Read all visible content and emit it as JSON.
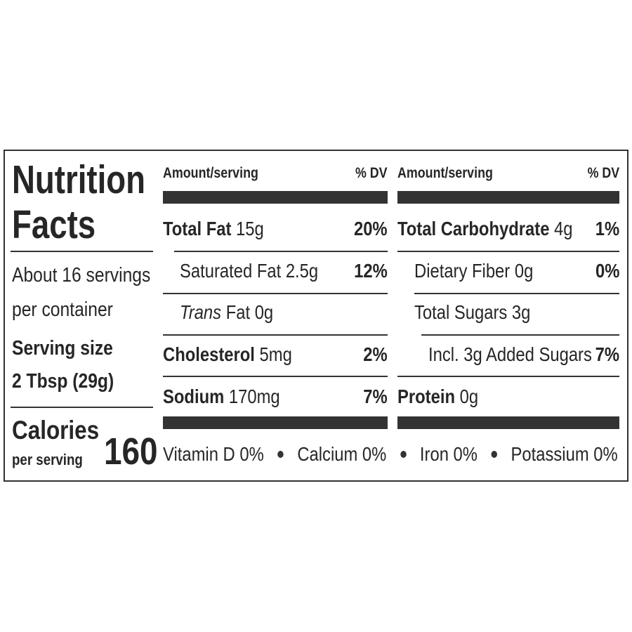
{
  "title": "Nutrition Facts",
  "servings": [
    "About 16 servings",
    "per container"
  ],
  "serving_size": {
    "label": "Serving size",
    "value": "2 Tbsp (29g)"
  },
  "calories": {
    "label": "Calories",
    "sublabel": "per serving",
    "value": "160"
  },
  "columns": [
    {
      "amount_header": "Amount/serving",
      "dv_header": "% DV",
      "rows": [
        {
          "name": "Total Fat",
          "amount": "15g",
          "dv": "20%"
        },
        {
          "name": "Saturated Fat 2.5g",
          "dv": "12%"
        },
        {
          "name_italic": "Trans",
          "name": "Fat 0g"
        },
        {
          "name": "Cholesterol",
          "amount": "5mg",
          "dv": "2%"
        },
        {
          "name": "Sodium",
          "amount": "170mg",
          "dv": "7%"
        }
      ]
    },
    {
      "amount_header": "Amount/serving",
      "dv_header": "% DV",
      "rows": [
        {
          "name": "Total Carbohydrate",
          "amount": "4g",
          "dv": "1%"
        },
        {
          "name": "Dietary Fiber 0g",
          "dv": "0%"
        },
        {
          "name": "Total Sugars 3g"
        },
        {
          "name": "Incl. 3g Added Sugars",
          "dv": "7%"
        },
        {
          "name": "Protein",
          "amount": "0g"
        }
      ]
    }
  ],
  "vitamins": [
    "Vitamin D 0%",
    "Calcium 0%",
    "Iron 0%",
    "Potassium 0%"
  ]
}
